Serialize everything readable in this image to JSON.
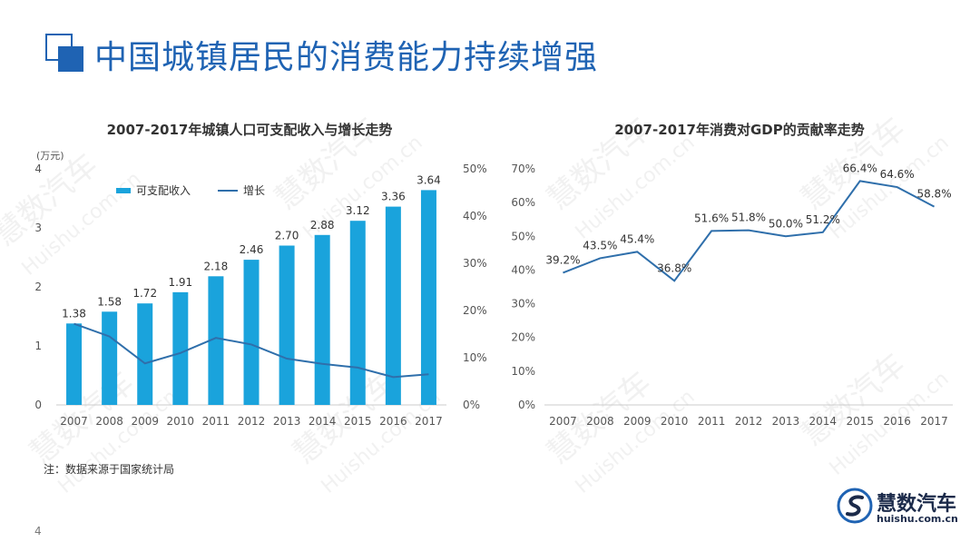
{
  "slide": {
    "title": "中国城镇居民的消费能力持续增强",
    "note": "注：数据来源于国家统计局",
    "page_number": "4",
    "logo_name": "慧数汽车",
    "logo_url": "huishu.com.cn",
    "watermark_name": "慧数汽车",
    "watermark_url": "Huishu.com.cn"
  },
  "colors": {
    "accent": "#1f63b3",
    "bar": "#1aa3dc",
    "line": "#2f6fab",
    "axis": "#cccccc"
  },
  "chart_data": [
    {
      "type": "bar",
      "title": "2007-2017年城镇人口可支配收入与增长走势",
      "unit_label": "(万元)",
      "categories": [
        "2007",
        "2008",
        "2009",
        "2010",
        "2011",
        "2012",
        "2013",
        "2014",
        "2015",
        "2016",
        "2017"
      ],
      "series": [
        {
          "name": "可支配收入",
          "type": "bar",
          "axis": "left",
          "values": [
            1.38,
            1.58,
            1.72,
            1.91,
            2.18,
            2.46,
            2.7,
            2.88,
            3.12,
            3.36,
            3.64
          ],
          "labels": [
            "1.38",
            "1.58",
            "1.72",
            "1.91",
            "2.18",
            "2.46",
            "2.70",
            "2.88",
            "3.12",
            "3.36",
            "3.64"
          ]
        },
        {
          "name": "增长",
          "type": "line",
          "axis": "right",
          "values": [
            17.2,
            14.5,
            8.8,
            11.0,
            14.2,
            12.8,
            9.8,
            8.7,
            7.9,
            5.9,
            6.5
          ]
        }
      ],
      "ylim": [
        0,
        4
      ],
      "yticks": [
        "0",
        "1",
        "2",
        "3",
        "4"
      ],
      "y2lim": [
        0,
        50
      ],
      "y2ticks": [
        "0%",
        "10%",
        "20%",
        "30%",
        "40%",
        "50%"
      ],
      "legend": "top-left"
    },
    {
      "type": "line",
      "title": "2007-2017年消费对GDP的贡献率走势",
      "categories": [
        "2007",
        "2008",
        "2009",
        "2010",
        "2011",
        "2012",
        "2013",
        "2014",
        "2015",
        "2016",
        "2017"
      ],
      "series": [
        {
          "values": [
            39.2,
            43.5,
            45.4,
            36.8,
            51.6,
            51.8,
            50.0,
            51.2,
            66.4,
            64.6,
            58.8
          ],
          "labels": [
            "39.2%",
            "43.5%",
            "45.4%",
            "36.8%",
            "51.6%",
            "51.8%",
            "50.0%",
            "51.2%",
            "66.4%",
            "64.6%",
            "58.8%"
          ]
        }
      ],
      "ylim": [
        0,
        70
      ],
      "yticks": [
        "0%",
        "10%",
        "20%",
        "30%",
        "40%",
        "50%",
        "60%",
        "70%"
      ]
    }
  ]
}
